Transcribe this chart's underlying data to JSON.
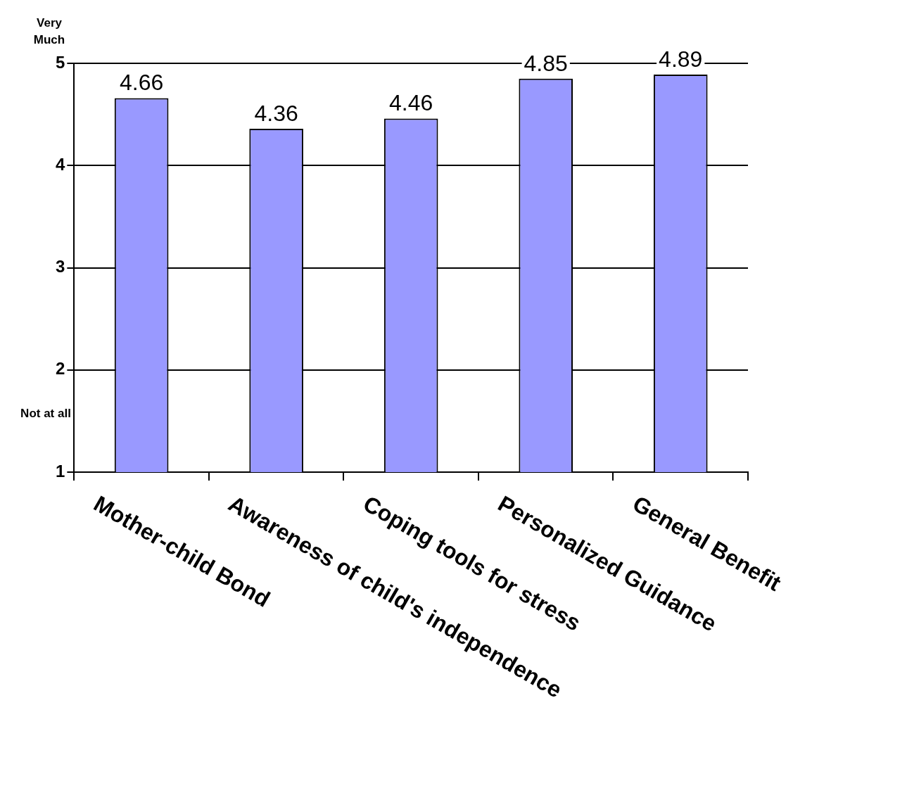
{
  "chart_data": {
    "type": "bar",
    "categories": [
      "Mother-child Bond",
      "Awareness of child's independence",
      "Coping tools for stress",
      "Personalized Guidance",
      "General Benefit"
    ],
    "values": [
      4.66,
      4.36,
      4.46,
      4.85,
      4.89
    ],
    "color": "#9999ff",
    "ylim": [
      1,
      5
    ],
    "yticks": [
      1,
      2,
      3,
      4,
      5
    ],
    "grid": "y",
    "data_labels": true,
    "annotations": [
      "Very Much",
      "Not at all"
    ]
  }
}
